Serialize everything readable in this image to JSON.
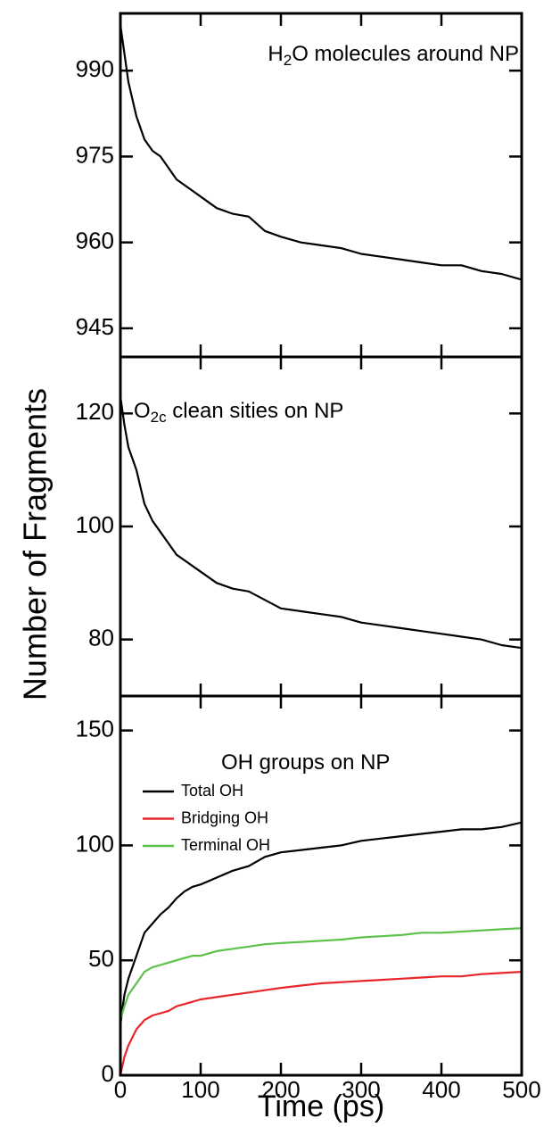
{
  "shared": {
    "ylabel": "Number of Fragments",
    "xlabel": "Time (ps)"
  },
  "chart_data": [
    {
      "type": "line",
      "title": [
        {
          "text": "H"
        },
        {
          "text": "2",
          "sub": true
        },
        {
          "text": "O molecules around NP"
        }
      ],
      "x": [
        0,
        5,
        10,
        20,
        30,
        40,
        50,
        60,
        70,
        80,
        90,
        100,
        120,
        140,
        160,
        180,
        200,
        225,
        250,
        275,
        300,
        325,
        350,
        375,
        400,
        425,
        450,
        475,
        500
      ],
      "series": [
        {
          "color": "#000000",
          "values": [
            998,
            993,
            988,
            982,
            978,
            976,
            975,
            973,
            971,
            970,
            969,
            968,
            966,
            965,
            964.5,
            962,
            961,
            960,
            959.5,
            959,
            958,
            957.5,
            957,
            956.5,
            956,
            956,
            955,
            954.5,
            953.5
          ]
        }
      ],
      "xlim": [
        0,
        500
      ],
      "xticks": [
        0,
        100,
        200,
        300,
        400,
        500
      ],
      "ylim": [
        940,
        1000
      ],
      "yticks": [
        945,
        960,
        975,
        990
      ]
    },
    {
      "type": "line",
      "title": [
        {
          "text": "O"
        },
        {
          "text": "2c",
          "sub": true
        },
        {
          "text": " clean sities on NP"
        }
      ],
      "x": [
        0,
        5,
        10,
        20,
        30,
        40,
        50,
        60,
        70,
        80,
        90,
        100,
        120,
        140,
        160,
        180,
        200,
        225,
        250,
        275,
        300,
        325,
        350,
        375,
        400,
        425,
        450,
        475,
        500
      ],
      "series": [
        {
          "color": "#000000",
          "values": [
            123,
            118,
            114,
            110,
            104,
            101,
            99,
            97,
            95,
            94,
            93,
            92,
            90,
            89,
            88.5,
            87,
            85.5,
            85,
            84.5,
            84,
            83,
            82.5,
            82,
            81.5,
            81,
            80.5,
            80,
            79,
            78.5
          ]
        }
      ],
      "xlim": [
        0,
        500
      ],
      "xticks": [
        0,
        100,
        200,
        300,
        400,
        500
      ],
      "ylim": [
        70,
        130
      ],
      "yticks": [
        80,
        100,
        120
      ]
    },
    {
      "type": "line",
      "title": [
        {
          "text": "OH groups on NP"
        }
      ],
      "x": [
        0,
        5,
        10,
        20,
        30,
        40,
        50,
        60,
        70,
        80,
        90,
        100,
        120,
        140,
        160,
        180,
        200,
        225,
        250,
        275,
        300,
        325,
        350,
        375,
        400,
        425,
        450,
        475,
        500
      ],
      "series": [
        {
          "name": "Total OH",
          "color": "#000000",
          "values": [
            22,
            35,
            42,
            52,
            62,
            66,
            70,
            73,
            77,
            80,
            82,
            83,
            86,
            89,
            91,
            95,
            97,
            98,
            99,
            100,
            102,
            103,
            104,
            105,
            106,
            107,
            107,
            108,
            110
          ]
        },
        {
          "name": "Bridging OH",
          "color": "#e8262a",
          "values": [
            0,
            8,
            13,
            20,
            24,
            26,
            27,
            28,
            30,
            31,
            32,
            33,
            34,
            35,
            36,
            37,
            38,
            39,
            40,
            40.5,
            41,
            41.5,
            42,
            42.5,
            43,
            43,
            44,
            44.5,
            45
          ]
        },
        {
          "name": "Terminal OH",
          "color": "#5cc24a",
          "values": [
            24,
            30,
            35,
            40,
            45,
            47,
            48,
            49,
            50,
            51,
            52,
            52,
            54,
            55,
            56,
            57,
            57.5,
            58,
            58.5,
            59,
            60,
            60.5,
            61,
            62,
            62,
            62.5,
            63,
            63.5,
            64
          ]
        }
      ],
      "xlim": [
        0,
        500
      ],
      "xticks": [
        0,
        100,
        200,
        300,
        400,
        500
      ],
      "ylim": [
        0,
        165
      ],
      "yticks": [
        0,
        50,
        100,
        150
      ]
    }
  ]
}
